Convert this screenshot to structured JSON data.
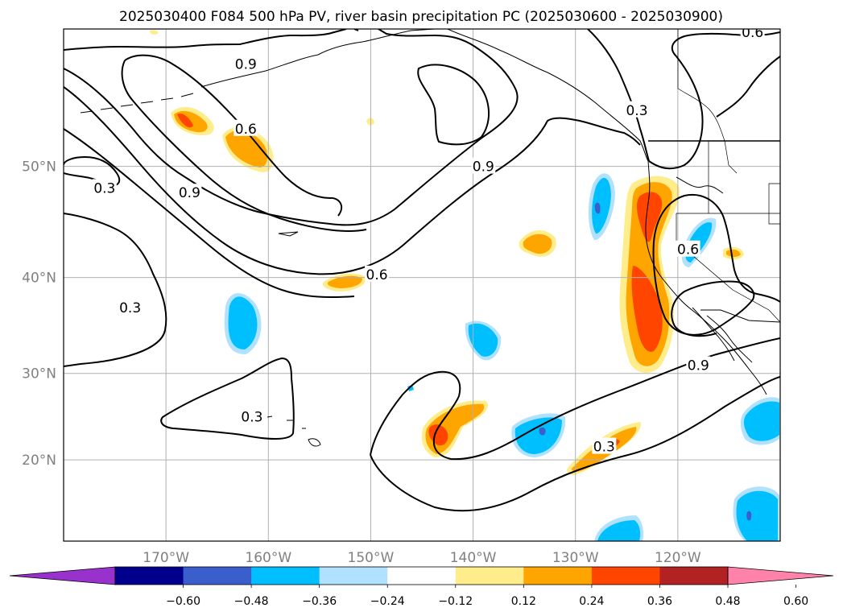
{
  "title": "2025030400 F084 500 hPa PV, river basin precipitation PC (2025030600 - 2025030900)",
  "map": {
    "lon_min": -180,
    "lon_max": -110,
    "lat_min": 10,
    "lat_max": 60,
    "lat_ticks": [
      {
        "value": 20,
        "label": "20°N"
      },
      {
        "value": 30,
        "label": "30°N"
      },
      {
        "value": 40,
        "label": "40°N"
      },
      {
        "value": 50,
        "label": "50°N"
      }
    ],
    "lon_ticks": [
      {
        "value": -170,
        "label": "170°W"
      },
      {
        "value": -160,
        "label": "160°W"
      },
      {
        "value": -150,
        "label": "150°W"
      },
      {
        "value": -140,
        "label": "140°W"
      },
      {
        "value": -130,
        "label": "130°W"
      },
      {
        "value": -120,
        "label": "120°W"
      }
    ],
    "grid": true
  },
  "contour_labels": [
    {
      "text": "0.9",
      "lon": -162.2,
      "lat": 57.7
    },
    {
      "text": "0.6",
      "lon": -162.2,
      "lat": 53.0
    },
    {
      "text": "0.3",
      "lon": -176.0,
      "lat": 48.2
    },
    {
      "text": "0.9",
      "lon": -167.7,
      "lat": 47.8
    },
    {
      "text": "0.3",
      "lon": -173.5,
      "lat": 37.0
    },
    {
      "text": "0.6",
      "lon": -149.4,
      "lat": 40.3
    },
    {
      "text": "0.9",
      "lon": -139.0,
      "lat": 50.0
    },
    {
      "text": "0.3",
      "lon": -124.0,
      "lat": 54.4
    },
    {
      "text": "0.6",
      "lon": -112.7,
      "lat": 59.8
    },
    {
      "text": "0.6",
      "lon": -119.0,
      "lat": 42.7
    },
    {
      "text": "0.9",
      "lon": -118.0,
      "lat": 30.9
    },
    {
      "text": "0.3",
      "lon": -161.6,
      "lat": 25.1
    },
    {
      "text": "0.3",
      "lon": -127.2,
      "lat": 21.6
    }
  ],
  "pv_contour_levels": [
    0.3,
    0.6,
    0.9
  ],
  "colorbar": {
    "levels": [
      "−0.60",
      "−0.48",
      "−0.36",
      "−0.24",
      "−0.12",
      "0.12",
      "0.24",
      "0.36",
      "0.48",
      "0.60"
    ],
    "colors": [
      "#9932CC",
      "#00008B",
      "#3A5FCD",
      "#00BFFF",
      "#B0E2FF",
      "#FFFFFF",
      "#FFEC8B",
      "#FFA500",
      "#FF4500",
      "#B22222",
      "#FF82AB"
    ],
    "extend": "both"
  },
  "precip_colors": {
    "pos_light": "#FFEC8B",
    "pos_mid": "#FFA500",
    "pos_high": "#FF4500",
    "neg_light": "#B0E2FF",
    "neg_mid": "#00BFFF",
    "neg_high": "#3A5FCD",
    "neg_max": "#9932CC"
  }
}
